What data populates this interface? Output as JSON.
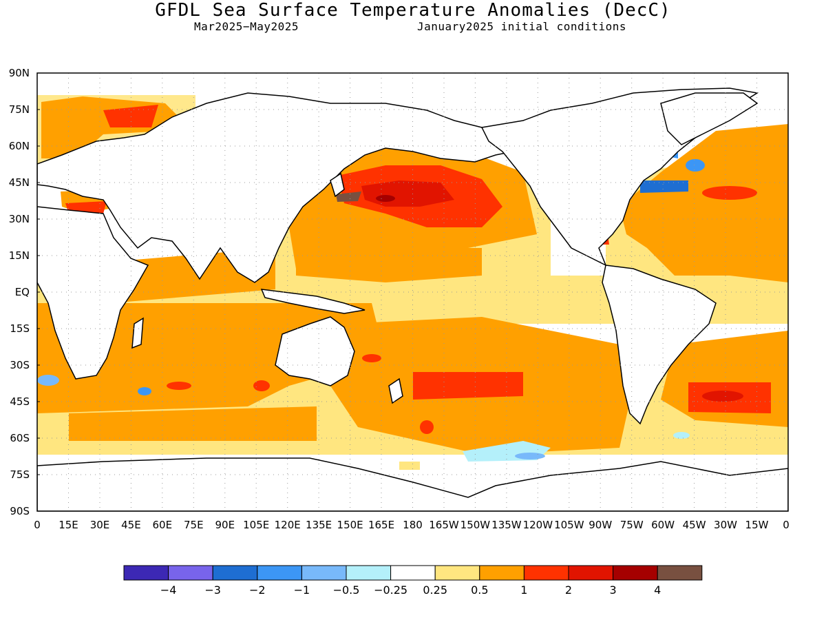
{
  "title": "GFDL Sea Surface Temperature Anomalies (DecC)",
  "subtitle_left": "Mar2025−May2025",
  "subtitle_right": "January2025 initial conditions",
  "map": {
    "lat_labels": [
      "90N",
      "75N",
      "60N",
      "45N",
      "30N",
      "15N",
      "EQ",
      "15S",
      "30S",
      "45S",
      "60S",
      "75S",
      "90S"
    ],
    "lon_labels": [
      "0",
      "15E",
      "30E",
      "45E",
      "60E",
      "75E",
      "90E",
      "105E",
      "120E",
      "135E",
      "150E",
      "165E",
      "180",
      "165W",
      "150W",
      "135W",
      "120W",
      "105W",
      "90W",
      "75W",
      "60W",
      "45W",
      "30W",
      "15W",
      "0"
    ],
    "lon_range": [
      0,
      360
    ],
    "lat_range": [
      -90,
      90
    ],
    "grid": "dotted",
    "colors": {
      "land": "#ffffff",
      "coast": "#000000",
      "lt_0_25": "#ffffff",
      "c0_25": "#ffe680",
      "c0_5": "#ffa000",
      "c1": "#ff3200",
      "c2": "#e11400",
      "c3": "#a50000",
      "c4": "#785040",
      "m0_25": "#b4f0fa",
      "m0_5": "#78b9fa",
      "m1": "#3c96f5",
      "m2": "#1e6ed2",
      "m3": "#7864eb",
      "m4": "#3c28b4"
    }
  },
  "colorbar": {
    "colors": [
      "#3c28b4",
      "#7864eb",
      "#1e6ed2",
      "#3c96f5",
      "#78b9fa",
      "#b4f0fa",
      "#ffffff",
      "#ffe680",
      "#ffa000",
      "#ff3200",
      "#e11400",
      "#a50000",
      "#785040"
    ],
    "labels": [
      "−4",
      "−3",
      "−2",
      "−1",
      "−0.5",
      "−0.25",
      "0.25",
      "0.5",
      "1",
      "2",
      "3",
      "4"
    ]
  }
}
